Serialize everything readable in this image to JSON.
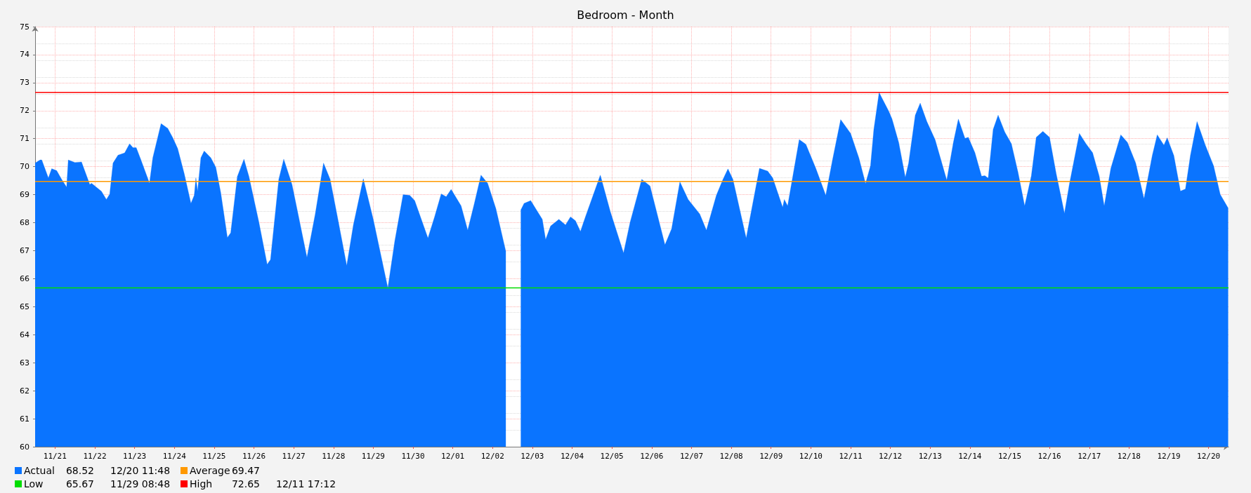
{
  "chart_data": {
    "type": "area",
    "title": "Bedroom - Month",
    "xlim": [
      "--11-20T12:00",
      "--12-20T12:00"
    ],
    "xticks": [
      {
        "value": "--11-21",
        "label": "11/21"
      },
      {
        "value": "--11-22",
        "label": "11/22"
      },
      {
        "value": "--11-23",
        "label": "11/23"
      },
      {
        "value": "--11-24",
        "label": "11/24"
      },
      {
        "value": "--11-25",
        "label": "11/25"
      },
      {
        "value": "--11-26",
        "label": "11/26"
      },
      {
        "value": "--11-27",
        "label": "11/27"
      },
      {
        "value": "--11-28",
        "label": "11/28"
      },
      {
        "value": "--11-29",
        "label": "11/29"
      },
      {
        "value": "--11-30",
        "label": "11/30"
      },
      {
        "value": "--12-01",
        "label": "12/01"
      },
      {
        "value": "--12-02",
        "label": "12/02"
      },
      {
        "value": "--12-03",
        "label": "12/03"
      },
      {
        "value": "--12-04",
        "label": "12/04"
      },
      {
        "value": "--12-05",
        "label": "12/05"
      },
      {
        "value": "--12-06",
        "label": "12/06"
      },
      {
        "value": "--12-07",
        "label": "12/07"
      },
      {
        "value": "--12-08",
        "label": "12/08"
      },
      {
        "value": "--12-09",
        "label": "12/09"
      },
      {
        "value": "--12-10",
        "label": "12/10"
      },
      {
        "value": "--12-11",
        "label": "12/11"
      },
      {
        "value": "--12-12",
        "label": "12/12"
      },
      {
        "value": "--12-13",
        "label": "12/13"
      },
      {
        "value": "--12-14",
        "label": "12/14"
      },
      {
        "value": "--12-15",
        "label": "12/15"
      },
      {
        "value": "--12-16",
        "label": "12/16"
      },
      {
        "value": "--12-17",
        "label": "12/17"
      },
      {
        "value": "--12-18",
        "label": "12/18"
      },
      {
        "value": "--12-19",
        "label": "12/19"
      },
      {
        "value": "--12-20",
        "label": "12/20"
      }
    ],
    "ylim": [
      60,
      75
    ],
    "yticks": [
      60,
      61,
      62,
      63,
      64,
      65,
      66,
      67,
      68,
      69,
      70,
      71,
      72,
      73,
      74,
      75
    ],
    "grid": true,
    "legend": "bottom left",
    "series": [
      {
        "name": "Actual",
        "color": "#0a74ff",
        "x": [
          "--11-20T12:00",
          "--11-20T15:00",
          "--11-20T16:00",
          "--11-20T20:00",
          "--11-20T22:00",
          "--11-21T01:00",
          "--11-21T04:00",
          "--11-21T07:00",
          "--11-21T08:00",
          "--11-21T12:00",
          "--11-21T16:00",
          "--11-21T21:00",
          "--11-21T22:00",
          "--11-22T04:00",
          "--11-22T07:00",
          "--11-22T09:00",
          "--11-22T11:00",
          "--11-22T14:00",
          "--11-22T18:00",
          "--11-22T21:00",
          "--11-22T23:00",
          "--11-23T01:00",
          "--11-23T04:00",
          "--11-23T09:00",
          "--11-23T11:00",
          "--11-23T16:00",
          "--11-23T20:00",
          "--11-23T23:00",
          "--11-24T02:00",
          "--11-24T06:00",
          "--11-24T10:00",
          "--11-24T12:00",
          "--11-24T13:00",
          "--11-24T14:00",
          "--11-24T16:00",
          "--11-24T18:00",
          "--11-24T22:00",
          "--11-25T01:00",
          "--11-25T04:00",
          "--11-25T08:00",
          "--11-25T10:00",
          "--11-25T14:00",
          "--11-25T18:00",
          "--11-25T21:00",
          "--11-26T03:00",
          "--11-26T08:00",
          "--11-26T10:00",
          "--11-26T15:00",
          "--11-26T18:00",
          "--11-26T23:00",
          "--11-27T08:00",
          "--11-27T13:00",
          "--11-27T18:00",
          "--11-27T22:00",
          "--11-28T03:00",
          "--11-28T08:00",
          "--11-28T12:00",
          "--11-28T18:00",
          "--11-29T00:00",
          "--11-29T08:48",
          "--11-29T13:00",
          "--11-29T18:00",
          "--11-29T22:00",
          "--11-30T01:00",
          "--11-30T09:00",
          "--11-30T13:00",
          "--11-30T17:00",
          "--11-30T20:00",
          "--11-30T23:00",
          "--12-01T05:00",
          "--12-01T09:00",
          "--12-01T13:00",
          "--12-01T17:00",
          "--12-01T21:00",
          "--12-02T02:00",
          "--12-02T08:00",
          "--12-02T11:00",
          "--12-02T17:00",
          "--12-02T19:00",
          "--12-02T23:00",
          "--12-03T06:00",
          "--12-03T08:00",
          "--12-03T11:00",
          "--12-03T16:00",
          "--12-03T20:00",
          "--12-03T23:00",
          "--12-04T02:00",
          "--12-04T05:00",
          "--12-04T08:00",
          "--12-04T17:00",
          "--12-04T23:00",
          "--12-05T07:00",
          "--12-05T11:00",
          "--12-05T18:00",
          "--12-05T23:00",
          "--12-06T08:00",
          "--12-06T12:00",
          "--12-06T17:00",
          "--12-06T22:00",
          "--12-07T05:00",
          "--12-07T09:00",
          "--12-07T15:00",
          "--12-07T19:00",
          "--12-07T22:00",
          "--12-08T01:00",
          "--12-08T09:00",
          "--12-08T17:00",
          "--12-08T22:00",
          "--12-09T01:00",
          "--12-09T07:00",
          "--12-09T08:00",
          "--12-09T10:00",
          "--12-09T17:00",
          "--12-09T21:00",
          "--12-10T03:00",
          "--12-10T09:00",
          "--12-10T13:00",
          "--12-10T18:00",
          "--12-11T00:00",
          "--12-11T05:00",
          "--12-11T09:00",
          "--12-11T12:00",
          "--12-11T14:00",
          "--12-11T17:12",
          "--12-11T19:00",
          "--12-11T23:00",
          "--12-12T01:00",
          "--12-12T05:00",
          "--12-12T09:00",
          "--12-12T11:00",
          "--12-12T15:00",
          "--12-12T18:00",
          "--12-12T22:00",
          "--12-13T03:00",
          "--12-13T10:00",
          "--12-13T14:00",
          "--12-13T17:00",
          "--12-13T21:00",
          "--12-13T23:00",
          "--12-14T03:00",
          "--12-14T07:00",
          "--12-14T09:00",
          "--12-14T11:00",
          "--12-14T14:00",
          "--12-14T17:00",
          "--12-14T21:00",
          "--12-15T01:00",
          "--12-15T05:00",
          "--12-15T09:00",
          "--12-15T13:00",
          "--12-15T16:00",
          "--12-15T20:00",
          "--12-16T00:00",
          "--12-16T04:00",
          "--12-16T09:00",
          "--12-16T12:00",
          "--12-16T18:00",
          "--12-16T22:00",
          "--12-17T02:00",
          "--12-17T06:00",
          "--12-17T09:00",
          "--12-17T13:00",
          "--12-17T19:00",
          "--12-17T23:00",
          "--12-18T04:00",
          "--12-18T09:00",
          "--12-18T14:00",
          "--12-18T17:00",
          "--12-18T21:00",
          "--12-18T23:00",
          "--12-19T03:00",
          "--12-19T07:00",
          "--12-19T10:00",
          "--12-19T13:00",
          "--12-19T17:00",
          "--12-19T22:00",
          "--12-20T03:00",
          "--12-20T07:00",
          "--12-20T11:48"
        ],
        "values": [
          70.13,
          70.24,
          70.24,
          69.6,
          69.93,
          69.86,
          69.55,
          69.27,
          70.24,
          70.15,
          70.17,
          69.36,
          69.41,
          69.12,
          68.83,
          69.02,
          70.13,
          70.41,
          70.49,
          70.82,
          70.68,
          70.68,
          70.22,
          69.41,
          70.32,
          71.54,
          71.37,
          71.04,
          70.65,
          69.74,
          68.69,
          68.98,
          69.6,
          69.12,
          70.32,
          70.56,
          70.32,
          69.98,
          69.07,
          67.47,
          67.64,
          69.65,
          70.27,
          69.65,
          68.02,
          66.51,
          66.68,
          69.55,
          70.27,
          69.36,
          66.76,
          68.31,
          70.13,
          69.55,
          68.02,
          66.47,
          67.92,
          69.57,
          68.12,
          65.67,
          67.35,
          69.0,
          68.98,
          68.79,
          67.45,
          68.21,
          69.03,
          68.93,
          69.19,
          68.6,
          67.73,
          68.69,
          69.7,
          69.41,
          68.5,
          66.97,
          null,
          68.45,
          68.69,
          68.79,
          68.12,
          67.4,
          67.88,
          68.12,
          67.92,
          68.21,
          68.07,
          67.69,
          68.21,
          69.7,
          68.4,
          66.92,
          68.02,
          69.55,
          69.31,
          67.21,
          67.78,
          69.46,
          68.83,
          68.31,
          67.73,
          68.98,
          69.55,
          69.92,
          69.55,
          67.45,
          69.94,
          69.84,
          69.6,
          68.55,
          68.83,
          68.6,
          70.97,
          70.8,
          69.94,
          68.98,
          70.22,
          71.68,
          71.19,
          70.31,
          69.4,
          70.03,
          71.33,
          72.65,
          72.44,
          71.98,
          71.7,
          70.87,
          69.62,
          70.13,
          71.84,
          72.27,
          71.61,
          70.96,
          69.52,
          70.87,
          71.7,
          71.01,
          71.05,
          70.5,
          69.66,
          69.68,
          69.59,
          71.33,
          71.84,
          71.24,
          70.82,
          69.8,
          68.6,
          69.66,
          71.05,
          71.26,
          71.05,
          69.76,
          68.34,
          69.38,
          71.19,
          70.82,
          70.5,
          69.66,
          68.6,
          69.94,
          71.14,
          70.87,
          70.13,
          68.86,
          70.4,
          71.14,
          70.77,
          71.03,
          70.4,
          69.13,
          69.2,
          70.4,
          71.61,
          70.77,
          70.03,
          69.01,
          68.52
        ]
      }
    ],
    "ref_lines": [
      {
        "axis": "y",
        "value": 69.47,
        "label": "Average",
        "color": "#ff9900"
      },
      {
        "axis": "y",
        "value": 65.67,
        "label": "Low",
        "color": "#00dd00"
      },
      {
        "axis": "y",
        "value": 72.65,
        "label": "High",
        "color": "#ff0000"
      }
    ],
    "annotations": [
      "68.52  12/20 11:48",
      "69.47",
      "65.67  11/29 08:48",
      "72.65  12/11 17:12"
    ]
  }
}
